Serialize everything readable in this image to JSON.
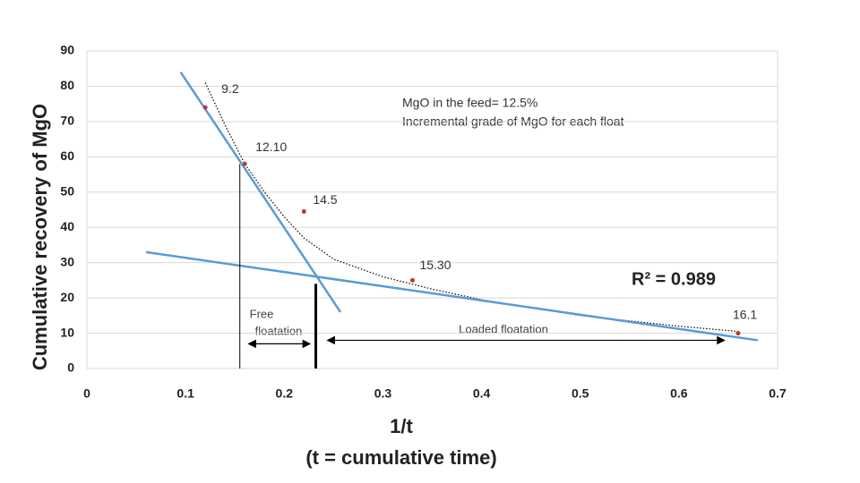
{
  "chart_data": {
    "type": "scatter",
    "ylabel": "Cumulative recovery of MgO",
    "xlabel": "1/t",
    "xlabel_sub": "(t = cumulative time)",
    "xlim": [
      0,
      0.7
    ],
    "ylim": [
      0,
      90
    ],
    "xticks": [
      0,
      0.1,
      0.2,
      0.3,
      0.4,
      0.5,
      0.6,
      0.7
    ],
    "yticks": [
      0,
      10,
      20,
      30,
      40,
      50,
      60,
      70,
      80,
      90
    ],
    "grid": true,
    "points": {
      "x": [
        0.12,
        0.16,
        0.22,
        0.33,
        0.66
      ],
      "values": [
        74,
        58,
        44.5,
        25,
        10
      ],
      "color": "#c0392b",
      "labels": [
        "9.2",
        "12.10",
        "14.5",
        "15.30",
        "16.1"
      ]
    },
    "trend": {
      "x": [
        0.12,
        0.14,
        0.16,
        0.18,
        0.2,
        0.22,
        0.25,
        0.3,
        0.35,
        0.4,
        0.5,
        0.6,
        0.66
      ],
      "values": [
        81,
        69,
        58,
        50,
        43,
        37,
        31,
        26,
        22.5,
        19.5,
        15,
        12,
        10.5
      ],
      "color": "#000000"
    },
    "lines": [
      {
        "x": [
          0.095,
          0.257
        ],
        "values": [
          84,
          16
        ],
        "color": "#5b9bd5"
      },
      {
        "x": [
          0.06,
          0.68
        ],
        "values": [
          33,
          8
        ],
        "color": "#5b9bd5"
      }
    ],
    "vlines": [
      {
        "x": [
          0.155,
          0.155
        ],
        "values": [
          0,
          58
        ],
        "width": 1
      },
      {
        "x": [
          0.232,
          0.232
        ],
        "values": [
          0,
          24
        ],
        "width": 3
      }
    ],
    "arrows": [
      {
        "x": [
          0.165,
          0.225
        ],
        "values": [
          7,
          7
        ]
      },
      {
        "x": [
          0.245,
          0.645
        ],
        "values": [
          8,
          8
        ]
      }
    ],
    "note": [
      "MgO in the feed= 12.5%",
      "Incremental grade of MgO for each float"
    ],
    "r2": "R² = 0.989",
    "free_label": [
      "Free",
      "floatation"
    ],
    "loaded_label": "Loaded floatation"
  }
}
